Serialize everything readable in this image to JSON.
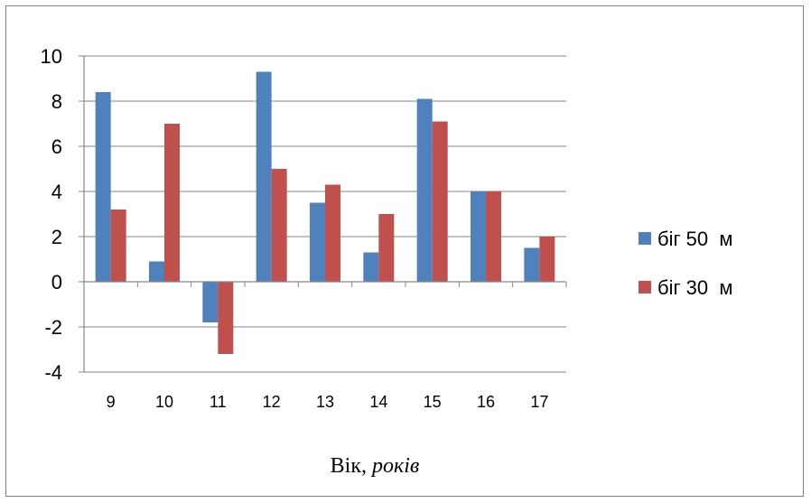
{
  "chart_data": {
    "type": "bar",
    "categories": [
      "9",
      "10",
      "11",
      "12",
      "13",
      "14",
      "15",
      "16",
      "17"
    ],
    "series": [
      {
        "name": "біг 50  м",
        "values": [
          8.4,
          0.9,
          -1.8,
          9.3,
          3.5,
          1.3,
          8.1,
          4.0,
          1.5
        ],
        "color": "#4f81bd"
      },
      {
        "name": "біг 30  м",
        "values": [
          3.2,
          7.0,
          -3.2,
          5.0,
          4.3,
          3.0,
          7.1,
          4.0,
          2.0
        ],
        "color": "#c0504d"
      }
    ],
    "ylim": [
      -4,
      10
    ],
    "yticks": [
      "-4",
      "-2",
      "0",
      "2",
      "4",
      "6",
      "8",
      "10"
    ],
    "xlabel_main": "Вік, ",
    "xlabel_italic": "років",
    "grid": true,
    "legend_position": "right"
  }
}
